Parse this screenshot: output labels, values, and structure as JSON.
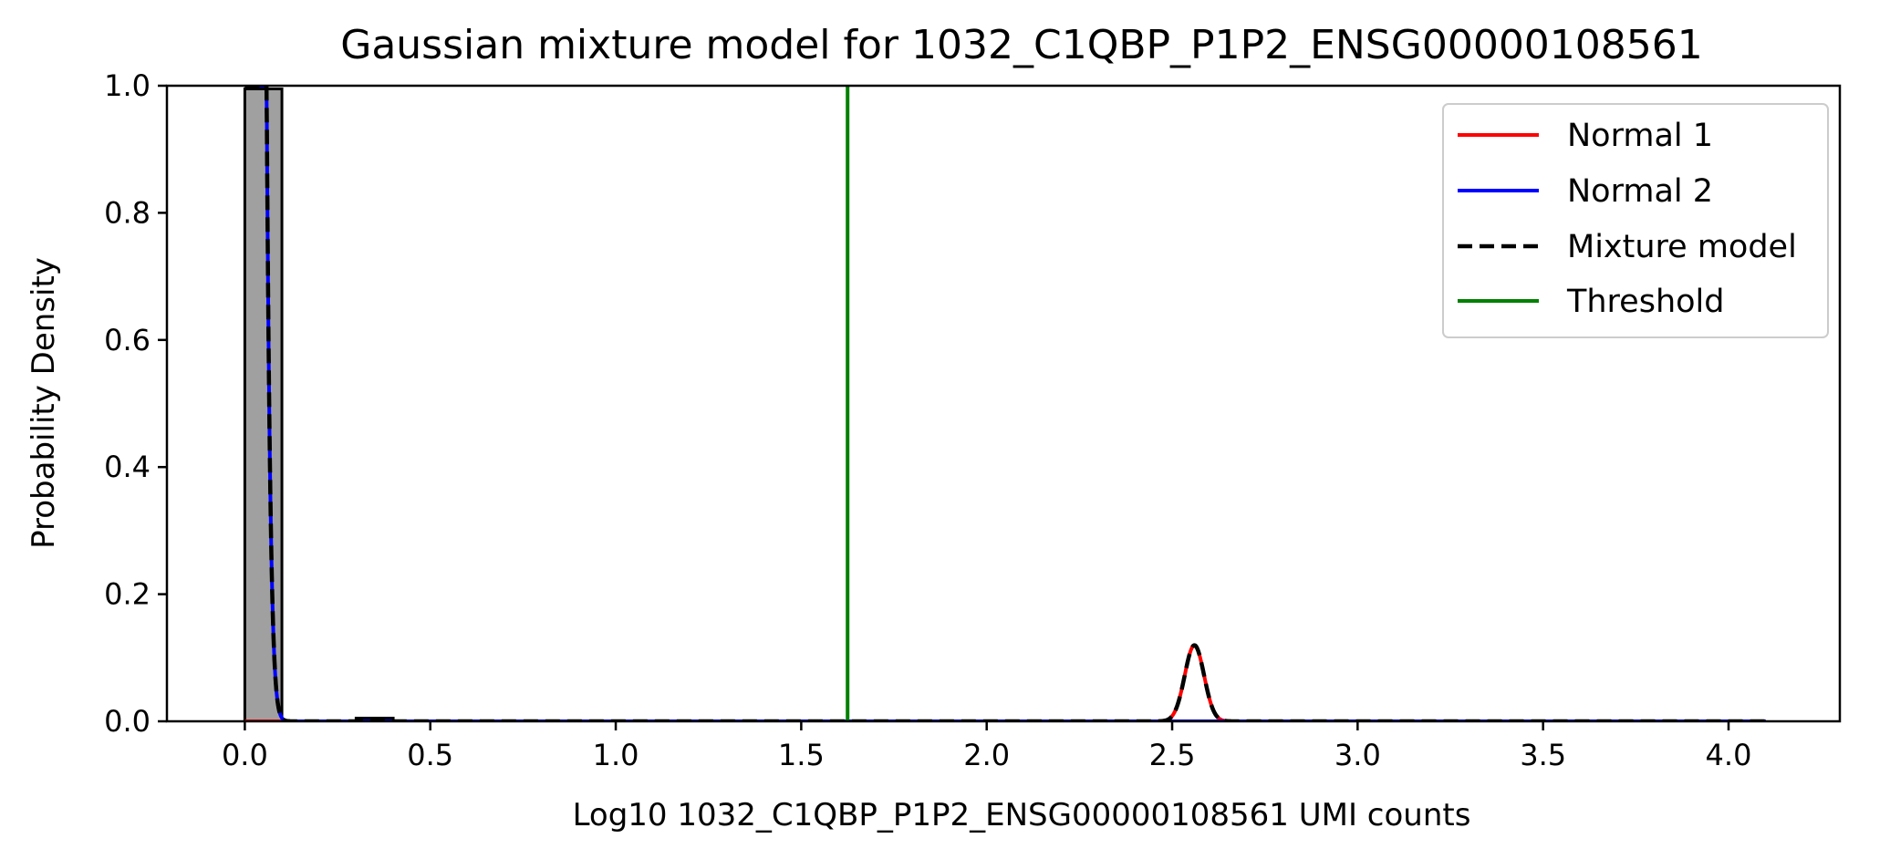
{
  "chart_data": {
    "type": "line",
    "title": "Gaussian mixture model for 1032_C1QBP_P1P2_ENSG00000108561",
    "xlabel": "Log10 1032_C1QBP_P1P2_ENSG00000108561 UMI counts",
    "ylabel": "Probability Density",
    "xlim": [
      -0.21,
      4.3
    ],
    "ylim": [
      0.0,
      1.0
    ],
    "xticks": [
      "0.0",
      "0.5",
      "1.0",
      "1.5",
      "2.0",
      "2.5",
      "3.0",
      "3.5",
      "4.0"
    ],
    "yticks": [
      "0.0",
      "0.2",
      "0.4",
      "0.6",
      "0.8",
      "1.0"
    ],
    "grid": false,
    "legend_position": "top-right",
    "histogram": {
      "color": "#a0a0a0",
      "bins": [
        {
          "x0": 0.0,
          "x1": 0.1,
          "density": 0.995
        },
        {
          "x0": 0.3,
          "x1": 0.4,
          "density": 0.005
        }
      ]
    },
    "series": [
      {
        "name": "Normal 1",
        "color": "#ff0000",
        "style": "solid",
        "mean": 2.56,
        "sd": 0.026,
        "weight": 0.0078,
        "x_range": [
          0.0,
          4.1
        ]
      },
      {
        "name": "Normal 2",
        "color": "#0000ff",
        "style": "solid",
        "mean": 0.0,
        "sd": 0.025,
        "weight": 0.992,
        "x_range": [
          0.0,
          4.1
        ]
      },
      {
        "name": "Mixture model",
        "color": "#000000",
        "style": "dashed",
        "x_range": [
          0.0,
          4.1
        ]
      }
    ],
    "threshold": {
      "name": "Threshold",
      "color": "#008000",
      "x": 1.625
    }
  }
}
